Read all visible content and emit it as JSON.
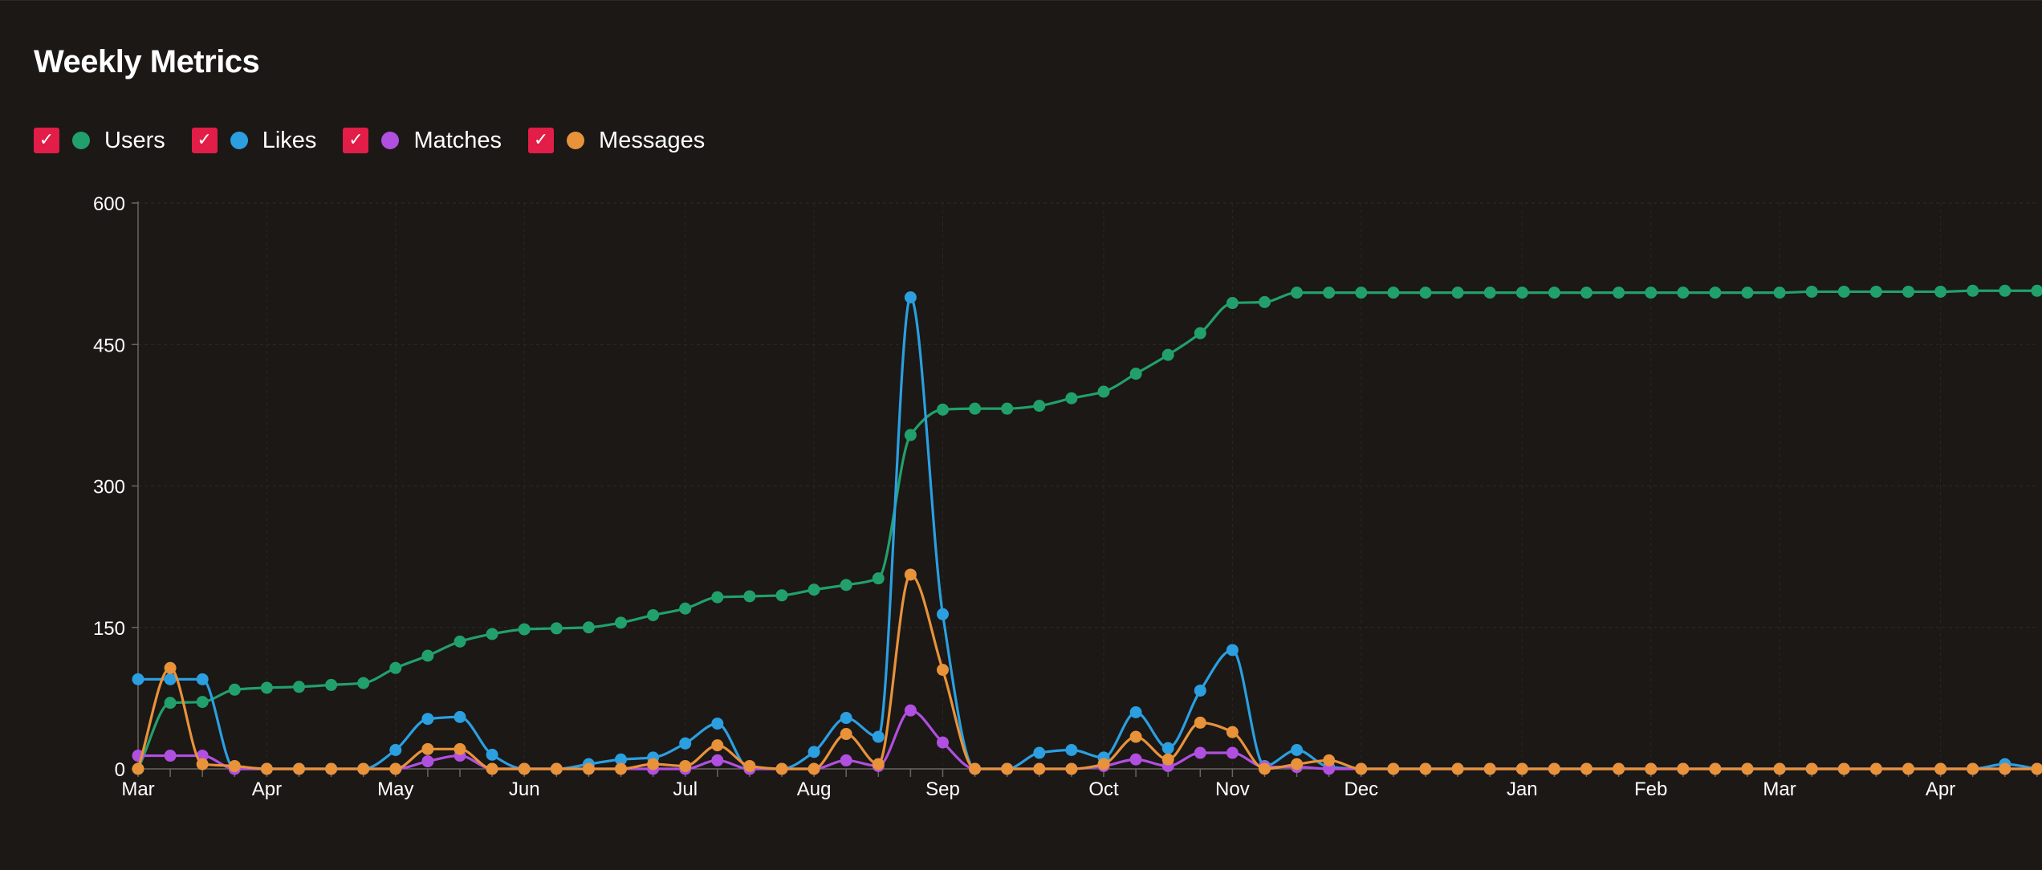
{
  "title": "Weekly Metrics",
  "colors": {
    "users": "#22a06b",
    "likes": "#2b9fe0",
    "matches": "#b14fe0",
    "messages": "#e8923a",
    "checkbox": "#e11d48"
  },
  "legend": [
    {
      "label": "Users",
      "checked": true,
      "icon": "check-icon"
    },
    {
      "label": "Likes",
      "checked": true,
      "icon": "check-icon"
    },
    {
      "label": "Matches",
      "checked": true,
      "icon": "check-icon"
    },
    {
      "label": "Messages",
      "checked": true,
      "icon": "check-icon"
    }
  ],
  "chart_data": {
    "type": "line",
    "title": "Weekly Metrics",
    "xlabel": "",
    "ylabel": "",
    "ylim": [
      0,
      600
    ],
    "yticks": [
      0,
      150,
      300,
      450,
      600
    ],
    "x_tick_labels": [
      {
        "label": "Mar",
        "week": 0
      },
      {
        "label": "Apr",
        "week": 4
      },
      {
        "label": "May",
        "week": 8
      },
      {
        "label": "Jun",
        "week": 12
      },
      {
        "label": "Jul",
        "week": 17
      },
      {
        "label": "Aug",
        "week": 21
      },
      {
        "label": "Sep",
        "week": 25
      },
      {
        "label": "Oct",
        "week": 30
      },
      {
        "label": "Nov",
        "week": 34
      },
      {
        "label": "Dec",
        "week": 38
      },
      {
        "label": "Jan",
        "week": 43
      },
      {
        "label": "Feb",
        "week": 47
      },
      {
        "label": "Mar",
        "week": 51
      },
      {
        "label": "Apr",
        "week": 56
      }
    ],
    "grid": true,
    "legend_position": "top-left",
    "series": [
      {
        "name": "Users",
        "values": [
          0,
          70,
          71,
          84,
          86,
          87,
          89,
          91,
          107,
          120,
          135,
          143,
          148,
          149,
          150,
          155,
          163,
          170,
          182,
          183,
          184,
          190,
          195,
          202,
          354,
          381,
          382,
          382,
          385,
          393,
          400,
          419,
          439,
          462,
          494,
          495,
          505,
          505,
          505,
          505,
          505,
          505,
          505,
          505,
          505,
          505,
          505,
          505,
          505,
          505,
          505,
          505,
          506,
          506,
          506,
          506,
          506,
          507,
          507,
          507
        ]
      },
      {
        "name": "Likes",
        "values": [
          95,
          95,
          95,
          0,
          0,
          0,
          0,
          0,
          20,
          53,
          55,
          15,
          0,
          0,
          5,
          10,
          12,
          27,
          48,
          0,
          0,
          18,
          54,
          34,
          500,
          164,
          0,
          0,
          17,
          20,
          12,
          60,
          22,
          83,
          126,
          3,
          20,
          2,
          0,
          0,
          0,
          0,
          0,
          0,
          0,
          0,
          0,
          0,
          0,
          0,
          0,
          0,
          0,
          0,
          0,
          0,
          0,
          0,
          5,
          0
        ]
      },
      {
        "name": "Matches",
        "values": [
          14,
          14,
          14,
          0,
          0,
          0,
          0,
          0,
          0,
          8,
          14,
          0,
          0,
          0,
          0,
          0,
          0,
          0,
          9,
          0,
          0,
          0,
          9,
          3,
          62,
          28,
          0,
          0,
          0,
          0,
          3,
          10,
          3,
          17,
          17,
          2,
          2,
          0,
          0,
          0,
          0,
          0,
          0,
          0,
          0,
          0,
          0,
          0,
          0,
          0,
          0,
          0,
          0,
          0,
          0,
          0,
          0,
          0,
          0,
          0
        ]
      },
      {
        "name": "Messages",
        "values": [
          0,
          107,
          5,
          3,
          0,
          0,
          0,
          0,
          0,
          21,
          21,
          0,
          0,
          0,
          0,
          0,
          5,
          3,
          25,
          3,
          0,
          0,
          37,
          5,
          206,
          105,
          0,
          0,
          0,
          0,
          5,
          34,
          10,
          49,
          39,
          0,
          5,
          9,
          0,
          0,
          0,
          0,
          0,
          0,
          0,
          0,
          0,
          0,
          0,
          0,
          0,
          0,
          0,
          0,
          0,
          0,
          0,
          0,
          0,
          0
        ]
      }
    ]
  }
}
